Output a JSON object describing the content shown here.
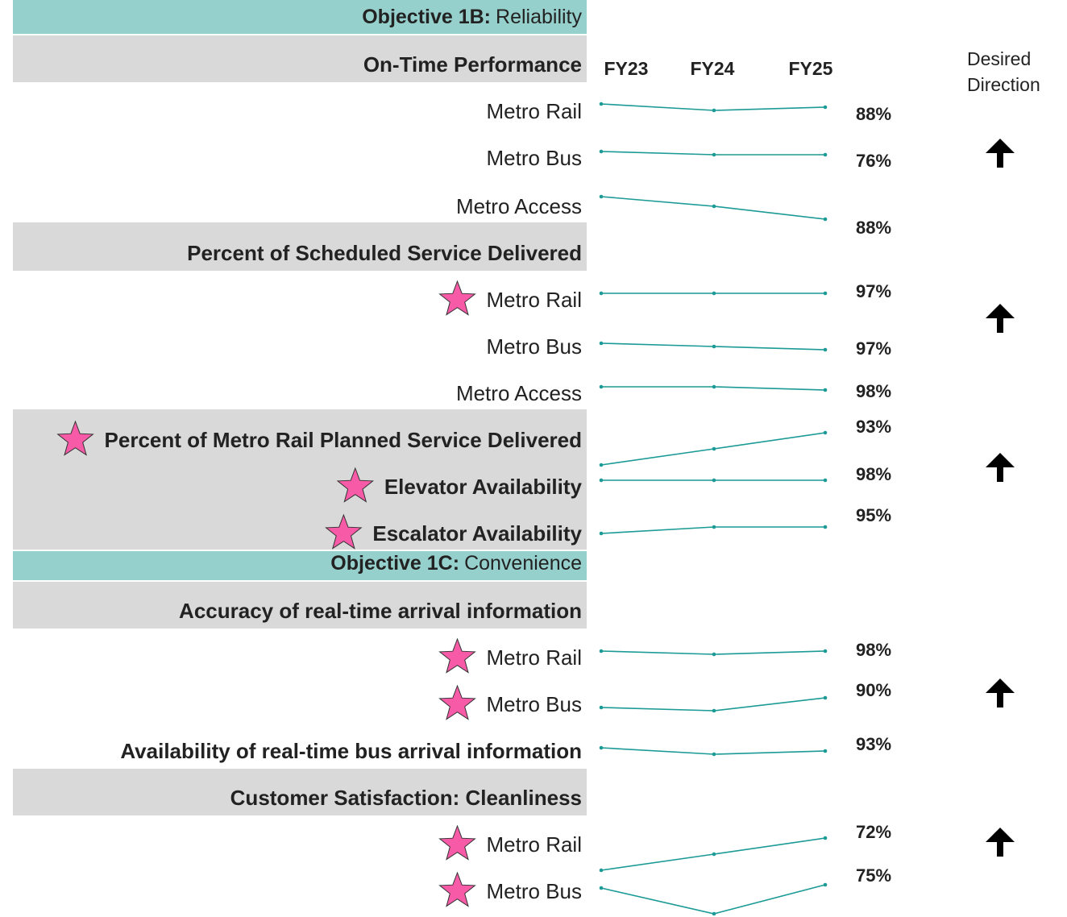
{
  "columns": [
    "FY23",
    "FY24",
    "FY25"
  ],
  "direction_header": [
    "Desired",
    "Direction"
  ],
  "rows": [
    {
      "style": "objective",
      "label": "Objective 1B:",
      "name": "Reliability"
    },
    {
      "style": "group",
      "label": "On-Time Performance",
      "desired_direction": "up"
    },
    {
      "style": "item",
      "label": "Metro Rail",
      "values": [
        89,
        87,
        88
      ],
      "fy25_label": "88%"
    },
    {
      "style": "item",
      "label": "Metro Bus",
      "values": [
        77,
        76,
        76
      ],
      "fy25_label": "76%"
    },
    {
      "style": "item",
      "label": "Metro Access",
      "values": [
        95,
        92,
        88
      ],
      "fy25_label": "88%"
    },
    {
      "style": "group",
      "label": "Percent of Scheduled Service Delivered",
      "desired_direction": "up"
    },
    {
      "style": "item",
      "label": "Metro Rail",
      "star": true,
      "values": [
        97,
        97,
        97
      ],
      "fy25_label": "97%"
    },
    {
      "style": "item",
      "label": "Metro Bus",
      "values": [
        99,
        98,
        97
      ],
      "fy25_label": "97%"
    },
    {
      "style": "item",
      "label": "Metro Access",
      "values": [
        99,
        99,
        98
      ],
      "fy25_label": "98%"
    },
    {
      "style": "metric",
      "label": "Percent of Metro Rail Planned Service Delivered",
      "star": true,
      "values": [
        83,
        88,
        93
      ],
      "fy25_label": "93%",
      "desired_direction": "up"
    },
    {
      "style": "metric",
      "label": "Elevator Availability",
      "star": true,
      "values": [
        98,
        98,
        98
      ],
      "fy25_label": "98%"
    },
    {
      "style": "metric",
      "label": "Escalator Availability",
      "star": true,
      "values": [
        93,
        95,
        95
      ],
      "fy25_label": "95%"
    },
    {
      "style": "objective",
      "label": "Objective 1C:",
      "name": "Convenience"
    },
    {
      "style": "group",
      "label": "Accuracy of real-time arrival information",
      "desired_direction": "up"
    },
    {
      "style": "item",
      "label": "Metro Rail",
      "star": true,
      "values": [
        98,
        97,
        98
      ],
      "fy25_label": "98%"
    },
    {
      "style": "item",
      "label": "Metro Bus",
      "star": true,
      "values": [
        87,
        86,
        90
      ],
      "fy25_label": "90%"
    },
    {
      "style": "metric",
      "label": "Availability of real-time bus arrival information",
      "values": [
        94,
        92,
        93
      ],
      "fy25_label": "93%"
    },
    {
      "style": "group",
      "label": "Customer Satisfaction: Cleanliness",
      "desired_direction": "up"
    },
    {
      "style": "item",
      "label": "Metro Rail",
      "star": true,
      "values": [
        62,
        67,
        72
      ],
      "fy25_label": "72%"
    },
    {
      "style": "item",
      "label": "Metro Bus",
      "star": true,
      "values": [
        74,
        66,
        75
      ],
      "fy25_label": "75%"
    }
  ]
}
